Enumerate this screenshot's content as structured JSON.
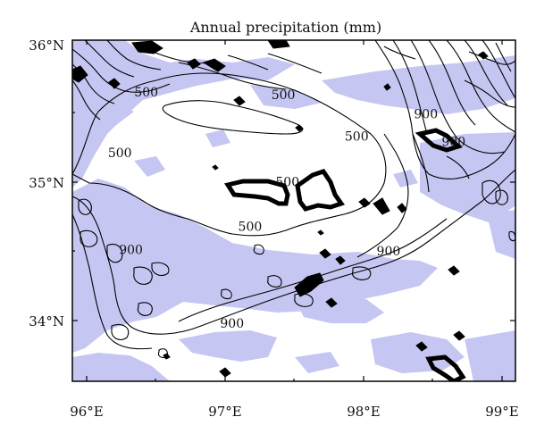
{
  "title": "Annual precipitation (mm)",
  "colors": {
    "shade": "#c6c6f3",
    "contour": "#000000",
    "background": "#ffffff"
  },
  "axes": {
    "x_ticks": [
      "96°E",
      "97°E",
      "98°E",
      "99°E"
    ],
    "y_ticks": [
      "36°N",
      "35°N",
      "34°N"
    ],
    "lon_range": [
      95.95,
      99.1
    ],
    "lat_range": [
      33.55,
      36.0
    ]
  },
  "contour_labels": [
    {
      "text": "500",
      "lon": 96.43,
      "lat": 35.62
    },
    {
      "text": "500",
      "lon": 96.24,
      "lat": 35.18
    },
    {
      "text": "500",
      "lon": 97.42,
      "lat": 35.6
    },
    {
      "text": "500",
      "lon": 97.95,
      "lat": 35.3
    },
    {
      "text": "500",
      "lon": 97.45,
      "lat": 34.97
    },
    {
      "text": "500",
      "lon": 97.18,
      "lat": 34.65
    },
    {
      "text": "900",
      "lon": 98.45,
      "lat": 35.46
    },
    {
      "text": "900",
      "lon": 98.65,
      "lat": 35.26
    },
    {
      "text": "900",
      "lon": 96.32,
      "lat": 34.48
    },
    {
      "text": "900",
      "lon": 98.18,
      "lat": 34.47
    },
    {
      "text": "900",
      "lon": 97.05,
      "lat": 33.95
    }
  ]
}
